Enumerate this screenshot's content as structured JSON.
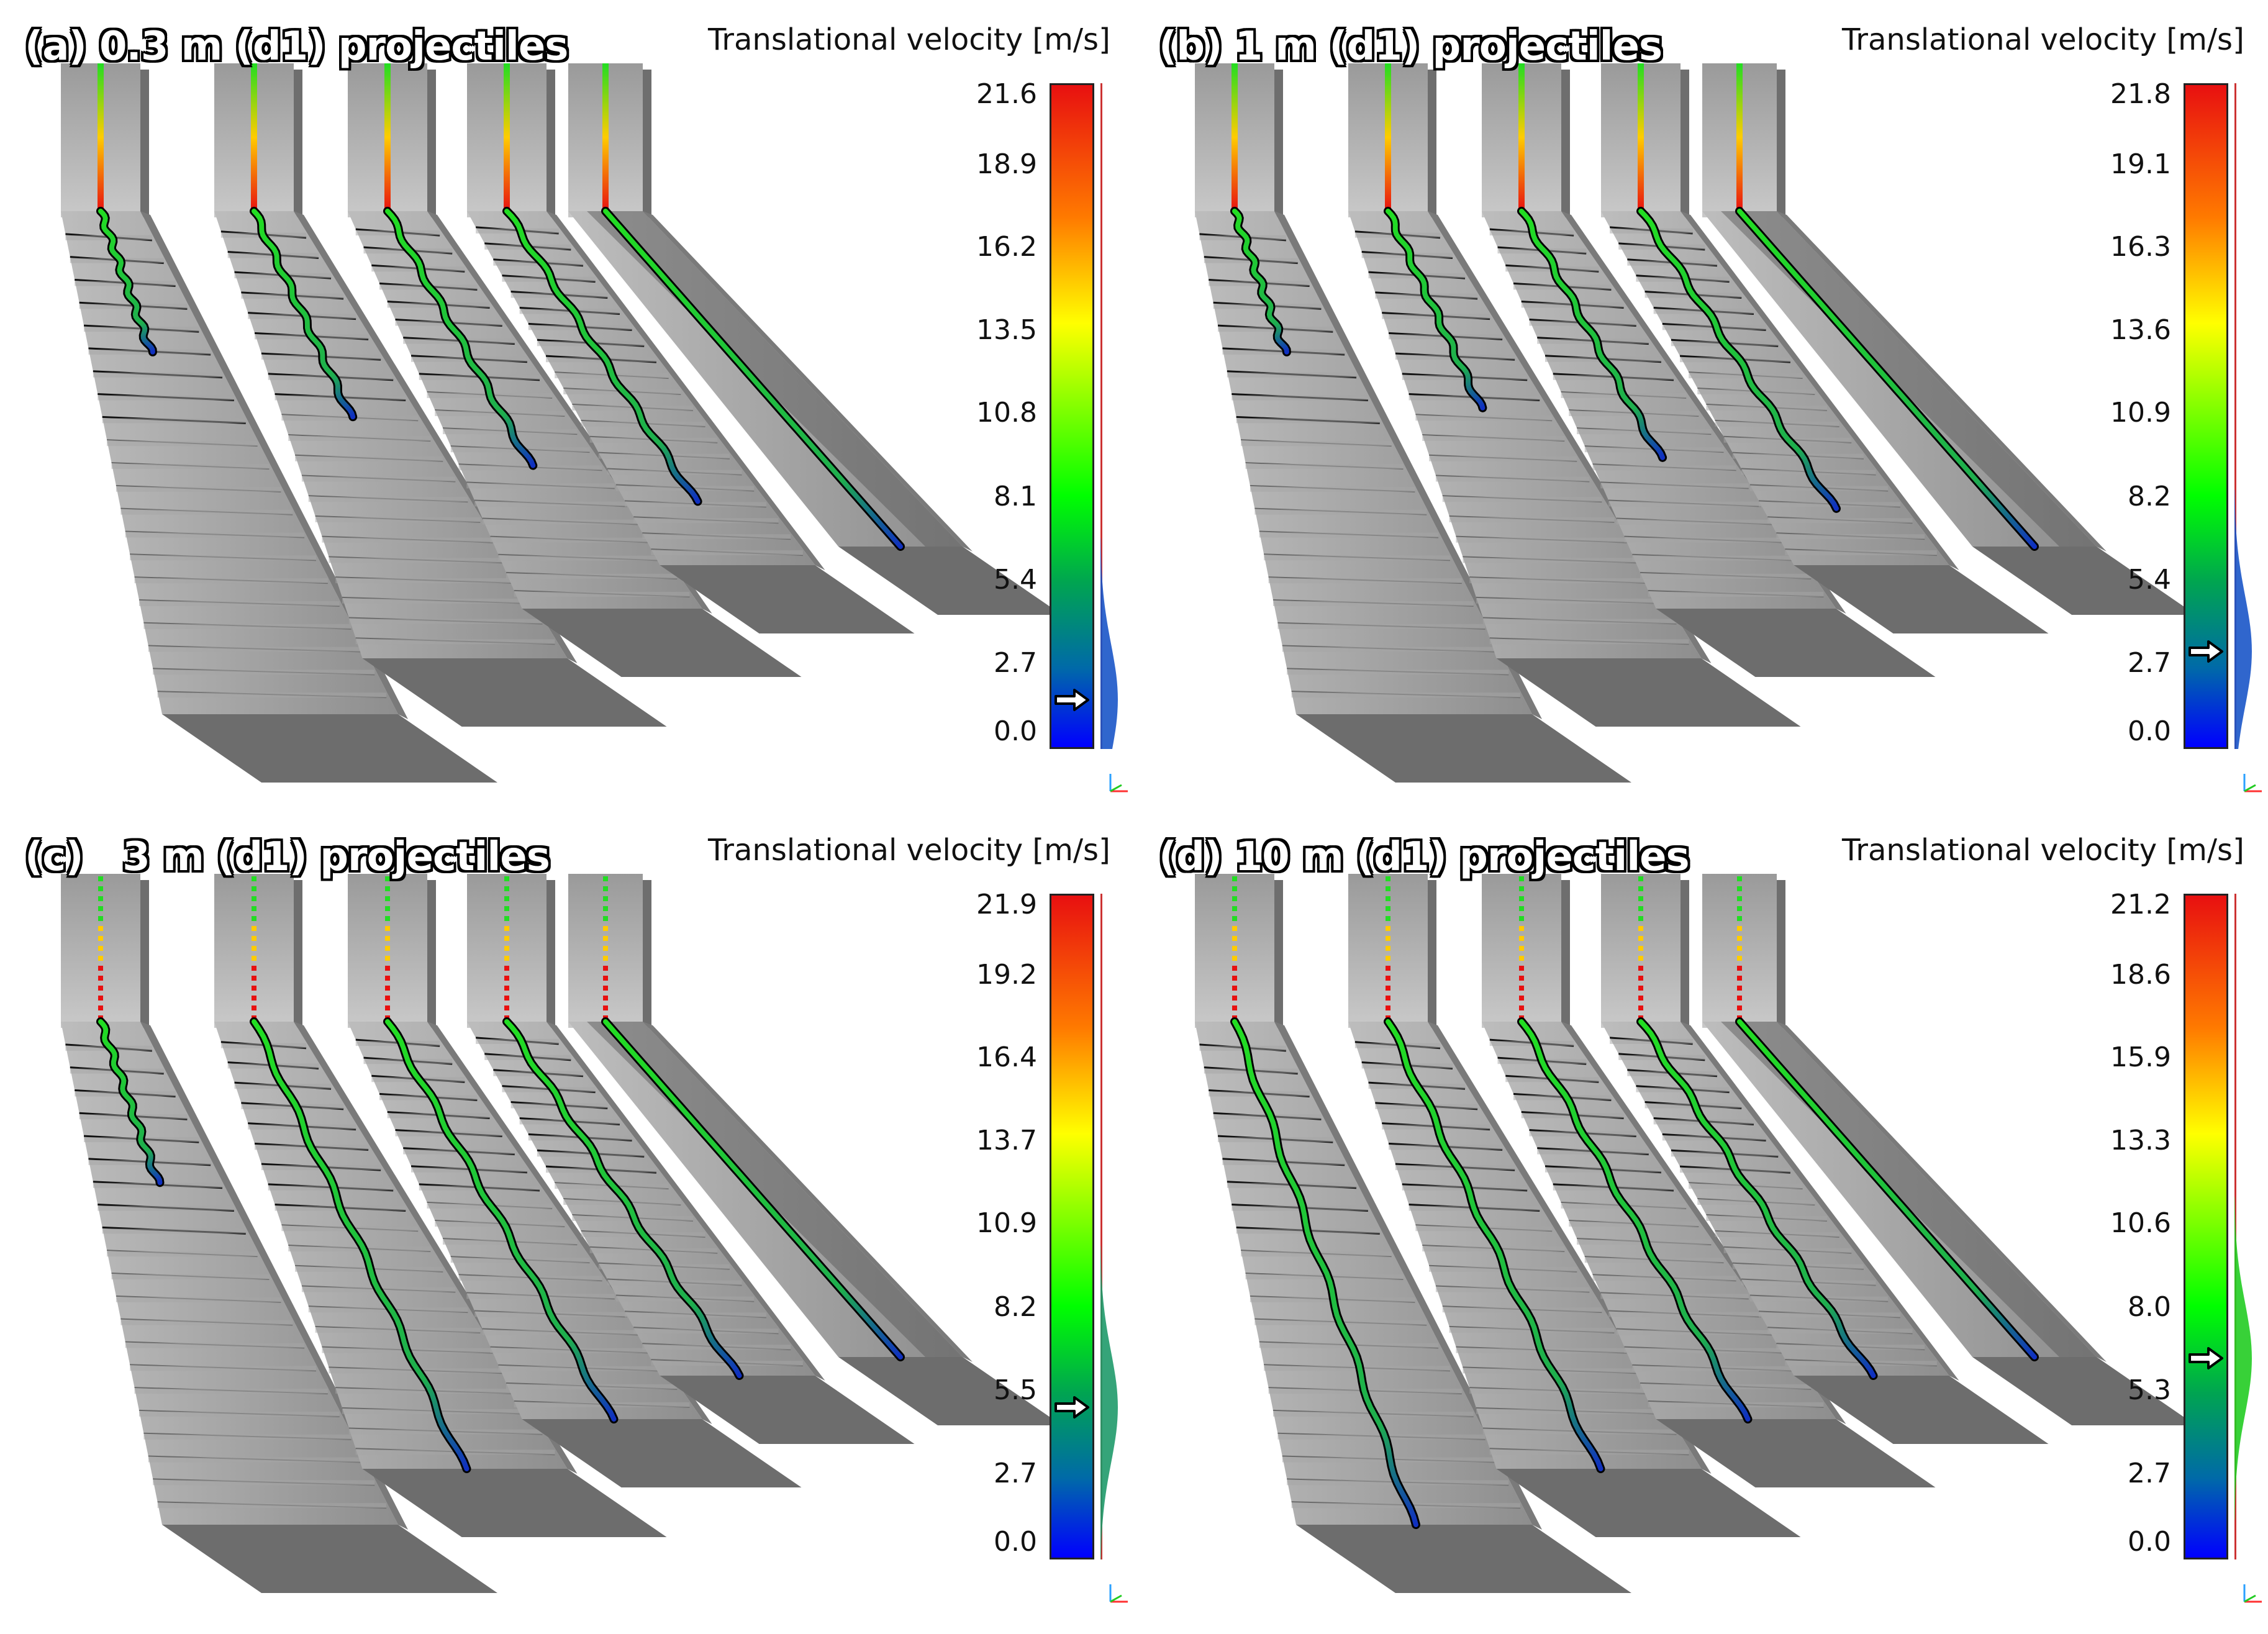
{
  "colorbar_title": "Translational velocity [m/s]",
  "panels": [
    {
      "id": "a",
      "title": "(a) 0.3 m (d1) projectiles",
      "ticks": [
        "21.6",
        "18.9",
        "16.2",
        "13.5",
        "10.8",
        "8.1",
        "5.4",
        "2.7",
        "0.0"
      ],
      "marker_value": 1.6,
      "runout_fraction": [
        0.28,
        0.46,
        0.64,
        0.82,
        1.0
      ],
      "dotted": false
    },
    {
      "id": "b",
      "title": "(b) 1 m (d1) projectiles",
      "ticks": [
        "21.8",
        "19.1",
        "16.3",
        "13.6",
        "10.9",
        "8.2",
        "5.4",
        "2.7",
        "0.0"
      ],
      "marker_value": 3.2,
      "runout_fraction": [
        0.28,
        0.44,
        0.62,
        0.84,
        1.0
      ],
      "dotted": false
    },
    {
      "id": "c",
      "title": "(c)   3 m (d1) projectiles",
      "ticks": [
        "21.9",
        "19.2",
        "16.4",
        "13.7",
        "10.9",
        "8.2",
        "5.5",
        "2.7",
        "0.0"
      ],
      "marker_value": 5.0,
      "runout_fraction": [
        0.32,
        1.0,
        1.0,
        1.0,
        1.0
      ],
      "dotted": true
    },
    {
      "id": "d",
      "title": "(d) 10 m (d1) projectiles",
      "ticks": [
        "21.2",
        "18.6",
        "15.9",
        "13.3",
        "10.6",
        "8.0",
        "5.3",
        "2.7",
        "0.0"
      ],
      "marker_value": 6.4,
      "runout_fraction": [
        1.0,
        1.0,
        1.0,
        1.0,
        1.0
      ],
      "dotted": true
    }
  ],
  "colors": {
    "slope_light": "#c8c8c8",
    "slope_dark": "#5c5c5c",
    "red": "#e81010",
    "green": "#22dd22",
    "blue": "#1030c0"
  },
  "icons": [
    "current-value-arrow-icon",
    "axis-triad-icon"
  ]
}
